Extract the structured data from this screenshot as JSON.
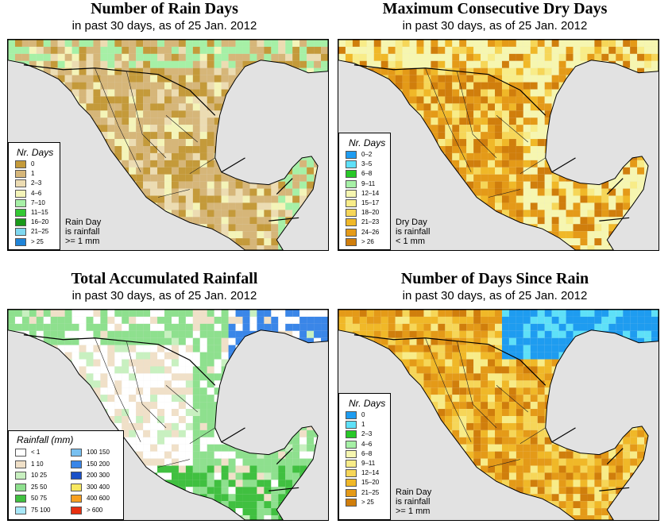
{
  "panels": [
    {
      "title": "Number of Rain Days",
      "subtitle": "in past 30 days, as of  25 Jan. 2012",
      "legend_title": "Nr. Days",
      "legend": [
        {
          "label": "0",
          "color": "#c49a3a"
        },
        {
          "label": "1",
          "color": "#d6b679"
        },
        {
          "label": "2–3",
          "color": "#ecdcb2"
        },
        {
          "label": "4–6",
          "color": "#f4f4b8"
        },
        {
          "label": "7–10",
          "color": "#a6f0a6"
        },
        {
          "label": "11–15",
          "color": "#34c834"
        },
        {
          "label": "16–20",
          "color": "#1a9a1a"
        },
        {
          "label": "21–25",
          "color": "#7fd8f0"
        },
        {
          "label": "> 25",
          "color": "#1f84d8"
        }
      ],
      "note": [
        "Rain Day",
        "is rainfall",
        ">= 1 mm"
      ]
    },
    {
      "title": "Maximum Consecutive Dry Days",
      "subtitle": "in past 30 days, as of  25 Jan. 2012",
      "legend_title": "Nr. Days",
      "legend": [
        {
          "label": "0–2",
          "color": "#1e9cf0"
        },
        {
          "label": "3–5",
          "color": "#5ee0f8"
        },
        {
          "label": "6–8",
          "color": "#28c828"
        },
        {
          "label": "9–11",
          "color": "#a6f0a6"
        },
        {
          "label": "12–14",
          "color": "#f6f6b0"
        },
        {
          "label": "15–17",
          "color": "#f8ec88"
        },
        {
          "label": "18–20",
          "color": "#f6d658"
        },
        {
          "label": "21–23",
          "color": "#f0b828"
        },
        {
          "label": "24–26",
          "color": "#e49a18"
        },
        {
          "label": "> 26",
          "color": "#d07e0c"
        }
      ],
      "note": [
        "Dry Day",
        "is rainfall",
        "< 1 mm"
      ]
    },
    {
      "title": "Total Accumulated Rainfall",
      "subtitle": "in past 30 days, as of  25 Jan. 2012",
      "legend_title": "Rainfall (mm)",
      "legend": [
        {
          "label": "< 1",
          "color": "#ffffff"
        },
        {
          "label": "1   10",
          "color": "#f0e0c8"
        },
        {
          "label": "10   25",
          "color": "#c8f0c0"
        },
        {
          "label": "25   50",
          "color": "#8ee08e"
        },
        {
          "label": "50   75",
          "color": "#40c040"
        },
        {
          "label": "75   100",
          "color": "#a8e8f8"
        },
        {
          "label": "100   150",
          "color": "#78c0f0"
        },
        {
          "label": "150   200",
          "color": "#3a86e8"
        },
        {
          "label": "200   300",
          "color": "#1a50c8"
        },
        {
          "label": "300   400",
          "color": "#f8e860"
        },
        {
          "label": "400   600",
          "color": "#f8a020"
        },
        {
          "label": "> 600",
          "color": "#e83010"
        }
      ],
      "note": []
    },
    {
      "title": "Number of Days Since Rain",
      "subtitle": "in past 30 days, as of  25 Jan. 2012",
      "legend_title": "Nr. Days",
      "legend": [
        {
          "label": "0",
          "color": "#1e9cf0"
        },
        {
          "label": "1",
          "color": "#5ee0f8"
        },
        {
          "label": "2–3",
          "color": "#28c828"
        },
        {
          "label": "4–6",
          "color": "#a6f0a6"
        },
        {
          "label": "6–8",
          "color": "#f6f6b0"
        },
        {
          "label": "9–11",
          "color": "#f8ec88"
        },
        {
          "label": "12–14",
          "color": "#f6d658"
        },
        {
          "label": "15–20",
          "color": "#f0b828"
        },
        {
          "label": "21–25",
          "color": "#e49a18"
        },
        {
          "label": "> 25",
          "color": "#d07e0c"
        }
      ],
      "note": [
        "Rain Day",
        "is rainfall",
        ">= 1 mm"
      ]
    }
  ],
  "colors": {
    "ocean": "#e2e2e2",
    "border": "#000000"
  }
}
